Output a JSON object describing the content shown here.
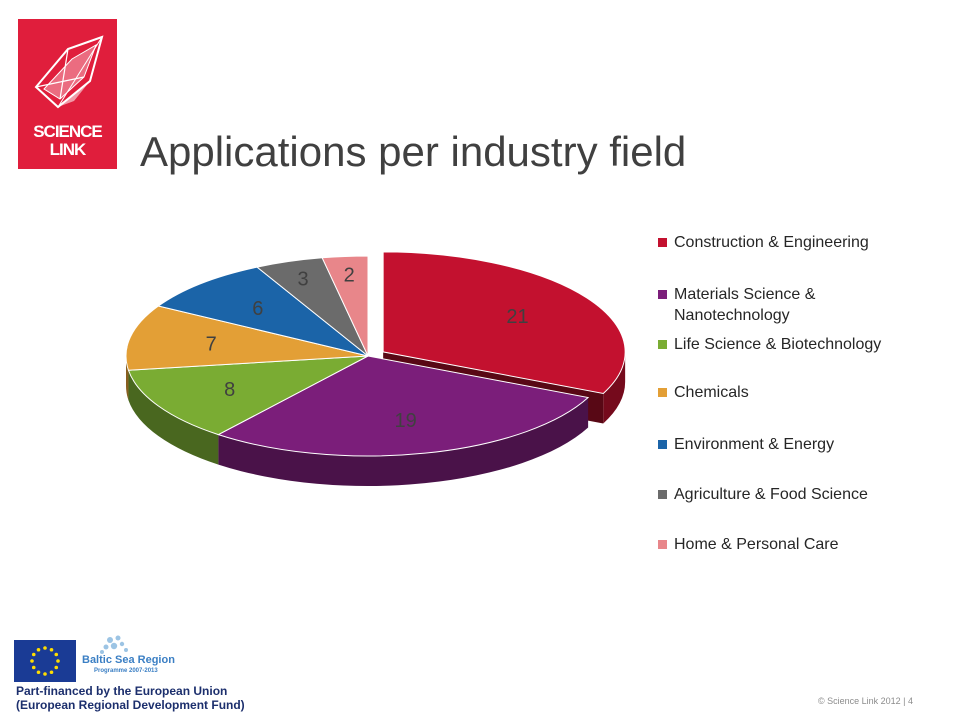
{
  "logo": {
    "line1": "SCIENCE",
    "line2": "LINK"
  },
  "title": "Applications per industry field",
  "chart_data": {
    "type": "pie",
    "title": "",
    "categories": [
      "Construction & Engineering",
      "Materials Science & Nanotechnology",
      "Life Science & Biotechnology",
      "Chemicals",
      "Environment & Energy",
      "Agriculture & Food Science",
      "Home & Personal Care"
    ],
    "values": [
      21,
      19,
      8,
      7,
      6,
      3,
      2
    ],
    "colors": [
      "#c3112f",
      "#7b1e7a",
      "#7aac33",
      "#e39f36",
      "#1b64a8",
      "#6b6b6b",
      "#e8868a"
    ],
    "exploded": [
      "Construction & Engineering"
    ],
    "style": "3d",
    "legend_position": "right",
    "data_labels": true
  },
  "footer": {
    "baltic_title": "Baltic Sea Region",
    "baltic_subtitle": "Programme 2007-2013",
    "eu_line1": "Part-financed by the European Union",
    "eu_line2": "(European Regional Development Fund)",
    "copyright": "© Science Link 2012   |  4"
  }
}
